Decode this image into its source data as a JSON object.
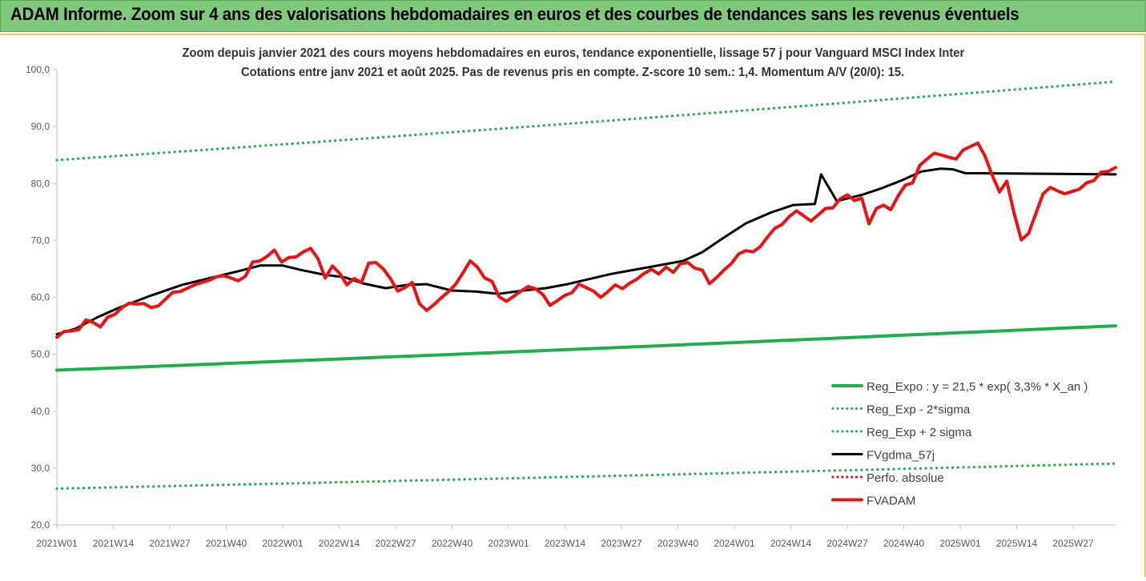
{
  "banner": {
    "title": "ADAM Informe. Zoom sur 4 ans des valorisations hebdomadaires en euros et des courbes de tendances sans les revenus éventuels"
  },
  "chart_data": {
    "type": "line",
    "title": "Zoom depuis janvier 2021 des cours moyens hebdomadaires en euros, tendance exponentielle, lissage 57 j pour Vanguard MSCI Index Inter",
    "subtitle": "Cotations entre janv 2021 et août 2025. Pas de revenus pris en compte. Z-score 10 sem.: 1,4. Momentum A/V (20/0): 15.",
    "ylim": [
      20,
      100
    ],
    "yticks": [
      "20,0",
      "30,0",
      "40,0",
      "50,0",
      "60,0",
      "70,0",
      "80,0",
      "90,0",
      "100,0"
    ],
    "xticks": [
      "2021W01",
      "2021W14",
      "2021W27",
      "2021W40",
      "2022W01",
      "2022W14",
      "2022W27",
      "2022W40",
      "2023W01",
      "2023W14",
      "2023W27",
      "2023W40",
      "2024W01",
      "2024W14",
      "2024W27",
      "2024W40",
      "2025W01",
      "2025W14",
      "2025W27"
    ],
    "grid": false,
    "legend_position": "bottom-right",
    "series": [
      {
        "name": "Reg_Expo : y = 21,5 * exp( 3,3% *  X_an )",
        "color": "#1fb04b",
        "style": "solid",
        "points": [
          [
            0,
            47.2
          ],
          [
            243,
            55.0
          ]
        ]
      },
      {
        "name": "Reg_Exp - 2*sigma",
        "color": "#1fb04b",
        "style": "dotted",
        "points": [
          [
            0,
            26.4
          ],
          [
            243,
            30.8
          ]
        ]
      },
      {
        "name": "Reg_Exp + 2 sigma",
        "color": "#1fb04b",
        "style": "dotted",
        "points": [
          [
            0,
            84.1
          ],
          [
            243,
            97.9
          ]
        ]
      },
      {
        "name": "FVgdma_57j",
        "color": "#000000",
        "style": "solid",
        "points": [
          [
            0,
            53.5
          ],
          [
            6,
            54.5
          ],
          [
            13,
            56.5
          ],
          [
            20,
            58.2
          ],
          [
            30,
            60.3
          ],
          [
            40,
            62.2
          ],
          [
            52,
            63.8
          ],
          [
            58,
            64.6
          ],
          [
            65,
            65.6
          ],
          [
            72,
            65.6
          ],
          [
            78,
            64.8
          ],
          [
            85,
            64.0
          ],
          [
            92,
            63.5
          ],
          [
            98,
            62.4
          ],
          [
            105,
            61.6
          ],
          [
            112,
            62.2
          ],
          [
            118,
            62.3
          ],
          [
            126,
            61.2
          ],
          [
            134,
            61.0
          ],
          [
            141,
            60.6
          ],
          [
            149,
            61.2
          ],
          [
            156,
            61.6
          ],
          [
            163,
            62.3
          ],
          [
            170,
            63.2
          ],
          [
            177,
            64.1
          ],
          [
            185,
            64.9
          ],
          [
            192,
            65.6
          ],
          [
            200,
            66.4
          ],
          [
            206,
            67.9
          ],
          [
            213,
            70.5
          ],
          [
            220,
            73.0
          ],
          [
            228,
            74.9
          ],
          [
            235,
            76.2
          ],
          [
            242,
            76.4
          ],
          [
            249,
            76.9
          ],
          [
            257,
            78.0
          ],
          [
            263,
            79.1
          ],
          [
            270,
            80.6
          ],
          [
            276,
            82.1
          ],
          [
            282,
            82.6
          ],
          [
            286,
            82.5
          ],
          [
            290,
            81.8
          ],
          [
            295,
            79.9
          ],
          [
            300,
            78.6
          ],
          [
            304,
            78.4
          ],
          [
            310,
            79.2
          ],
          [
            317,
            79.7
          ],
          [
            324,
            80.3
          ],
          [
            331,
            81.0
          ],
          [
            338,
            81.6
          ],
          [
            244,
            81.6
          ]
        ]
      },
      {
        "name": "Perfo. absolue",
        "color": "#ff0000",
        "style": "dotted",
        "points": []
      },
      {
        "name": "FVADAM",
        "color": "#ee1111",
        "style": "solid",
        "points": [
          [
            0,
            53.0
          ],
          [
            2,
            54.0
          ],
          [
            4,
            54.1
          ],
          [
            6,
            54.3
          ],
          [
            8,
            56.0
          ],
          [
            10,
            55.6
          ],
          [
            12,
            54.8
          ],
          [
            14,
            56.5
          ],
          [
            16,
            57.0
          ],
          [
            18,
            58.2
          ],
          [
            20,
            59.0
          ],
          [
            22,
            58.8
          ],
          [
            24,
            58.9
          ],
          [
            26,
            58.2
          ],
          [
            28,
            58.5
          ],
          [
            30,
            59.7
          ],
          [
            32,
            60.9
          ],
          [
            34,
            61.0
          ],
          [
            36,
            61.6
          ],
          [
            38,
            62.2
          ],
          [
            40,
            62.6
          ],
          [
            42,
            63.0
          ],
          [
            44,
            63.6
          ],
          [
            46,
            63.8
          ],
          [
            48,
            63.4
          ],
          [
            50,
            62.9
          ],
          [
            52,
            63.7
          ],
          [
            54,
            66.2
          ],
          [
            56,
            66.4
          ],
          [
            58,
            67.2
          ],
          [
            60,
            68.3
          ],
          [
            62,
            66.2
          ],
          [
            64,
            67.0
          ],
          [
            66,
            67.1
          ],
          [
            68,
            68.0
          ],
          [
            70,
            68.6
          ],
          [
            72,
            66.8
          ],
          [
            74,
            63.4
          ],
          [
            76,
            65.5
          ],
          [
            78,
            64.2
          ],
          [
            80,
            62.2
          ],
          [
            82,
            63.3
          ],
          [
            84,
            62.6
          ],
          [
            86,
            66.0
          ],
          [
            88,
            66.1
          ],
          [
            90,
            65.0
          ],
          [
            92,
            63.3
          ],
          [
            94,
            61.1
          ],
          [
            96,
            61.7
          ],
          [
            98,
            62.6
          ],
          [
            100,
            58.9
          ],
          [
            102,
            57.7
          ],
          [
            104,
            58.7
          ],
          [
            106,
            59.9
          ],
          [
            108,
            61.0
          ],
          [
            110,
            62.3
          ],
          [
            112,
            64.3
          ],
          [
            114,
            66.4
          ],
          [
            116,
            65.3
          ],
          [
            118,
            63.4
          ],
          [
            120,
            62.8
          ],
          [
            122,
            60.1
          ],
          [
            124,
            59.3
          ],
          [
            126,
            60.2
          ],
          [
            128,
            61.1
          ],
          [
            130,
            61.9
          ],
          [
            132,
            61.5
          ],
          [
            134,
            60.5
          ],
          [
            136,
            58.6
          ],
          [
            138,
            59.4
          ],
          [
            140,
            60.3
          ],
          [
            142,
            60.8
          ],
          [
            144,
            62.3
          ],
          [
            146,
            61.7
          ],
          [
            148,
            61.1
          ],
          [
            150,
            60.0
          ],
          [
            152,
            61.0
          ],
          [
            154,
            62.2
          ],
          [
            156,
            61.5
          ],
          [
            158,
            62.5
          ],
          [
            160,
            63.2
          ],
          [
            162,
            64.2
          ],
          [
            164,
            64.9
          ],
          [
            166,
            64.1
          ],
          [
            168,
            65.3
          ],
          [
            170,
            64.4
          ],
          [
            172,
            65.9
          ],
          [
            174,
            66.1
          ],
          [
            176,
            65.1
          ],
          [
            178,
            64.8
          ],
          [
            180,
            62.4
          ],
          [
            182,
            63.5
          ],
          [
            184,
            64.8
          ],
          [
            186,
            65.9
          ],
          [
            188,
            67.6
          ],
          [
            190,
            68.2
          ],
          [
            192,
            68.0
          ],
          [
            194,
            68.9
          ],
          [
            196,
            70.6
          ],
          [
            198,
            72.1
          ],
          [
            200,
            72.8
          ],
          [
            202,
            74.2
          ],
          [
            204,
            75.2
          ],
          [
            206,
            74.3
          ],
          [
            208,
            73.4
          ],
          [
            210,
            74.5
          ],
          [
            212,
            75.6
          ],
          [
            214,
            75.7
          ],
          [
            216,
            77.3
          ],
          [
            218,
            78.0
          ],
          [
            220,
            77.0
          ],
          [
            222,
            77.4
          ],
          [
            224,
            72.9
          ],
          [
            226,
            75.6
          ],
          [
            228,
            76.2
          ],
          [
            230,
            75.4
          ],
          [
            232,
            77.8
          ],
          [
            234,
            79.7
          ],
          [
            236,
            80.1
          ],
          [
            238,
            83.2
          ],
          [
            240,
            84.3
          ],
          [
            242,
            85.3
          ],
          [
            244,
            85.0
          ],
          [
            246,
            84.6
          ],
          [
            248,
            84.3
          ],
          [
            250,
            85.9
          ],
          [
            252,
            86.5
          ],
          [
            254,
            87.1
          ],
          [
            256,
            84.8
          ],
          [
            258,
            81.4
          ],
          [
            260,
            78.5
          ],
          [
            262,
            80.4
          ],
          [
            264,
            74.8
          ],
          [
            266,
            70.1
          ],
          [
            268,
            71.2
          ],
          [
            270,
            74.7
          ],
          [
            272,
            78.2
          ],
          [
            274,
            79.3
          ],
          [
            276,
            78.7
          ],
          [
            278,
            78.2
          ],
          [
            280,
            78.6
          ],
          [
            282,
            79.0
          ],
          [
            284,
            80.1
          ],
          [
            286,
            80.5
          ],
          [
            288,
            82.0
          ],
          [
            290,
            82.1
          ],
          [
            292,
            82.8
          ]
        ]
      }
    ]
  }
}
